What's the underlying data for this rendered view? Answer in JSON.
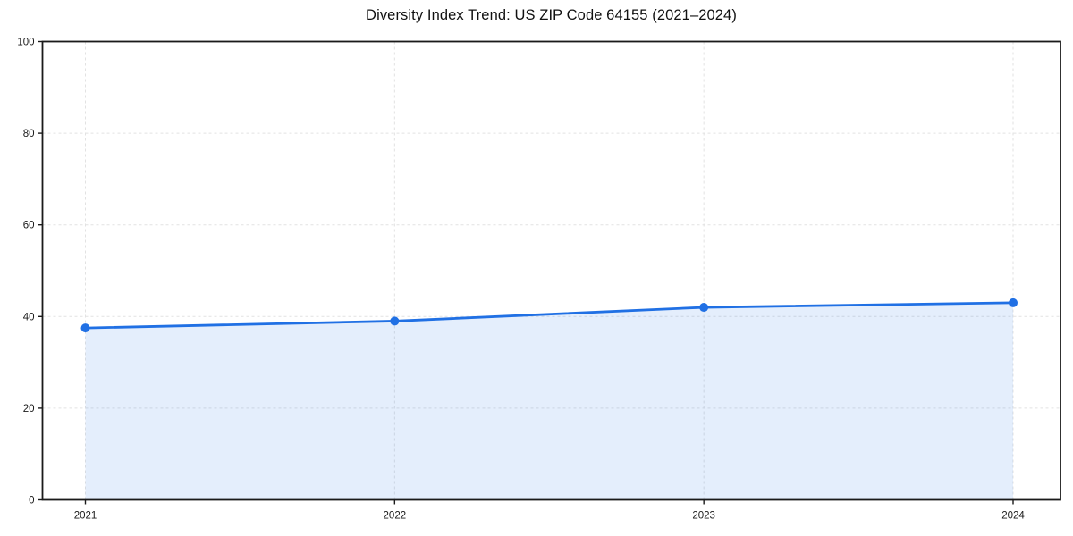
{
  "page": {
    "background": "#ffffff"
  },
  "chart_data": {
    "type": "line",
    "title": "Diversity Index Trend: US ZIP Code 64155 (2021–2024)",
    "x": [
      2021,
      2022,
      2023,
      2024
    ],
    "x_tick_labels": [
      "2021",
      "2022",
      "2023",
      "2024"
    ],
    "series": [
      {
        "name": "Diversity Index",
        "values": [
          37.5,
          39.0,
          42.0,
          43.0
        ]
      }
    ],
    "ylim": [
      0,
      100
    ],
    "yticks": [
      0,
      20,
      40,
      60,
      80,
      100
    ],
    "ytick_labels": [
      "0",
      "20",
      "40",
      "60",
      "80",
      "100"
    ],
    "xlabel": "",
    "ylabel": "",
    "legend": "none",
    "grid": true,
    "grid_style": "dashed",
    "marker": "circle",
    "area_fill": true,
    "colors": {
      "line": "#2070e4",
      "fill": "rgba(32,112,228,0.12)",
      "grid": "#e2e2e2",
      "axis": "#1a1a1a",
      "tick_label": "#1a1a1a",
      "background": "#ffffff"
    }
  }
}
